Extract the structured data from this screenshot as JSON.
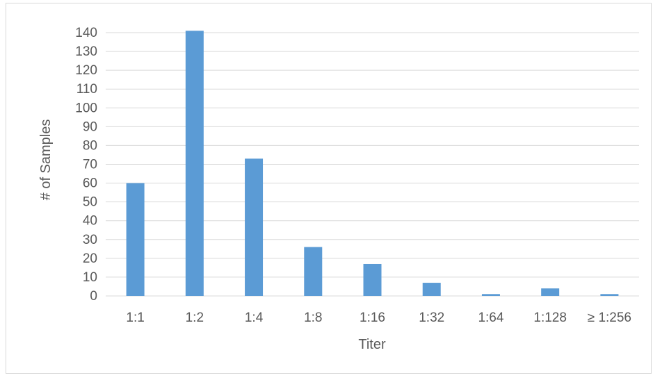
{
  "chart_data": {
    "type": "bar",
    "title": "",
    "xlabel": "Titer",
    "ylabel": "# of Samples",
    "categories": [
      "1:1",
      "1:2",
      "1:4",
      "1:8",
      "1:16",
      "1:32",
      "1:64",
      "1:128",
      "≥ 1:256"
    ],
    "values": [
      60,
      141,
      73,
      26,
      17,
      7,
      1,
      4,
      1
    ],
    "ylim": [
      0,
      140
    ],
    "yticks": [
      0,
      10,
      20,
      30,
      40,
      50,
      60,
      70,
      80,
      90,
      100,
      110,
      120,
      130,
      140
    ],
    "grid": true,
    "legend": "none",
    "bar_color": "#5b9bd5",
    "grid_color": "#d9d9d9",
    "border_color": "#d9d9d9"
  }
}
